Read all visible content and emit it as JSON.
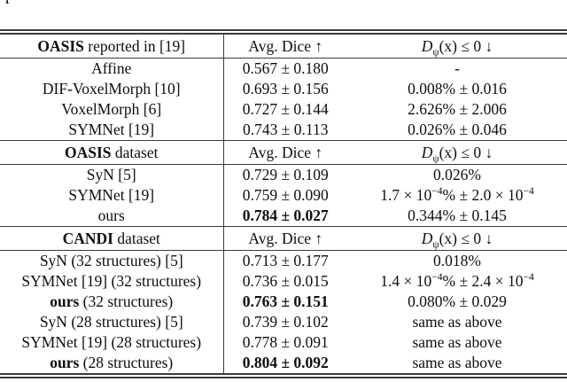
{
  "page": {
    "fragment_glyph": "p"
  },
  "table": {
    "divider_color": "#3c3c3c",
    "sections": [
      {
        "header": {
          "title_bold": "OASIS",
          "title_rest": " reported in [19]",
          "dice_label": "Avg. Dice ↑",
          "fold_d": "D",
          "fold_sub": "ψ",
          "fold_rest": "(x) ≤ 0 ↓"
        },
        "rows": [
          {
            "method": "Affine",
            "dice": "0.567 ± 0.180",
            "fold": "-"
          },
          {
            "method": "DIF-VoxelMorph [10]",
            "dice": "0.693 ± 0.156",
            "fold": "0.008% ± 0.016"
          },
          {
            "method": "VoxelMorph [6]",
            "dice": "0.727 ± 0.144",
            "fold": "2.626% ± 2.006"
          },
          {
            "method": "SYMNet [19]",
            "dice": "0.743 ± 0.113",
            "fold": "0.026% ± 0.046"
          }
        ]
      },
      {
        "header": {
          "title_bold": "OASIS",
          "title_rest": " dataset",
          "dice_label": "Avg. Dice ↑",
          "fold_d": "D",
          "fold_sub": "ψ",
          "fold_rest": "(x) ≤ 0 ↓"
        },
        "rows": [
          {
            "method": "SyN [5]",
            "dice": "0.729 ± 0.109",
            "fold": "0.026%"
          },
          {
            "method": "SYMNet [19]",
            "dice": "0.759 ± 0.090",
            "fold_a": "1.7 × 10",
            "fold_sup_a": "−4",
            "fold_b": "% ± 2.0 × 10",
            "fold_sup_b": "−4"
          },
          {
            "method": "ours",
            "dice": "0.784 ± 0.027",
            "fold": "0.344% ± 0.145"
          }
        ]
      },
      {
        "header": {
          "title_bold": "CANDI",
          "title_rest": " dataset",
          "dice_label": "Avg. Dice ↑",
          "fold_d": "D",
          "fold_sub": "ψ",
          "fold_rest": "(x) ≤ 0 ↓"
        },
        "rows": [
          {
            "method": "SyN (32 structures) [5]",
            "dice": "0.713 ± 0.177",
            "fold": "0.018%"
          },
          {
            "method": "SYMNet [19] (32 structures)",
            "dice": "0.736 ± 0.015",
            "fold_a": "1.4 × 10",
            "fold_sup_a": "−4",
            "fold_b": "% ± 2.4 × 10",
            "fold_sup_b": "−4"
          },
          {
            "method_bold": "ours",
            "method": " (32 structures)",
            "dice": "0.763 ± 0.151",
            "fold": "0.080% ± 0.029"
          },
          {
            "method": "SyN (28 structures) [5]",
            "dice": "0.739 ± 0.102",
            "fold": "same as above"
          },
          {
            "method": "SYMNet [19] (28 structures)",
            "dice": "0.778 ± 0.091",
            "fold": "same as above"
          },
          {
            "method_bold": "ours",
            "method": " (28 structures)",
            "dice": "0.804 ± 0.092",
            "fold": "same as above"
          }
        ]
      }
    ]
  }
}
